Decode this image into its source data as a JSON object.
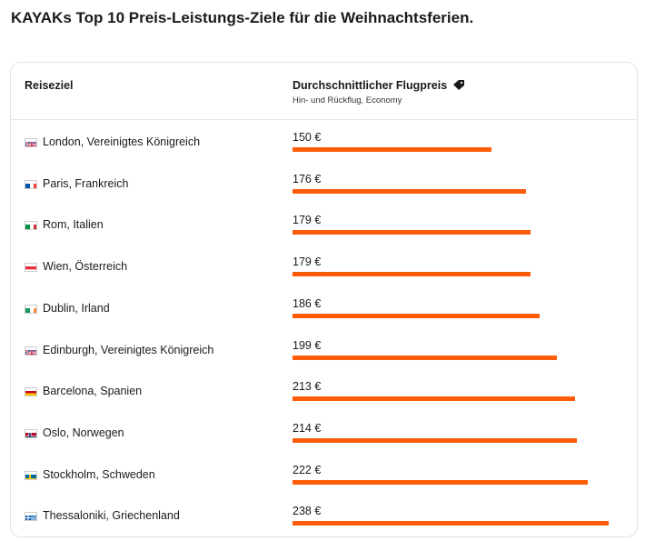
{
  "title": "KAYAKs Top 10 Preis-Leistungs-Ziele für die Weihnachtsferien.",
  "table": {
    "col1": "Reiseziel",
    "col2": "Durchschnittlicher Flugpreis",
    "col2_icon": "price-tag-icon",
    "col2_sub": "Hin- und Rückflug, Economy",
    "bar_color": "#ff5c0a",
    "rows": [
      {
        "name": "London, Vereinigtes Königreich",
        "price": "150 €",
        "value": 150,
        "flag": "gb"
      },
      {
        "name": "Paris, Frankreich",
        "price": "176 €",
        "value": 176,
        "flag": "fr"
      },
      {
        "name": "Rom, Italien",
        "price": "179 €",
        "value": 179,
        "flag": "it"
      },
      {
        "name": "Wien, Österreich",
        "price": "179 €",
        "value": 179,
        "flag": "at"
      },
      {
        "name": "Dublin, Irland",
        "price": "186 €",
        "value": 186,
        "flag": "ie"
      },
      {
        "name": "Edinburgh, Vereinigtes Königreich",
        "price": "199 €",
        "value": 199,
        "flag": "gb"
      },
      {
        "name": "Barcelona, Spanien",
        "price": "213 €",
        "value": 213,
        "flag": "es"
      },
      {
        "name": "Oslo, Norwegen",
        "price": "214 €",
        "value": 214,
        "flag": "no"
      },
      {
        "name": "Stockholm, Schweden",
        "price": "222 €",
        "value": 222,
        "flag": "se"
      },
      {
        "name": "Thessaloniki, Griechenland",
        "price": "238 €",
        "value": 238,
        "flag": "gr"
      }
    ]
  }
}
